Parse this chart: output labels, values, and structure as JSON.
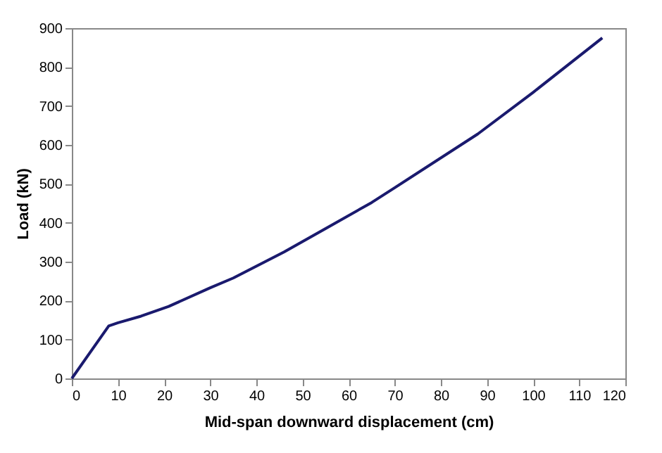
{
  "chart_data": {
    "type": "line",
    "xlabel": "Mid-span downward displacement (cm)",
    "ylabel": "Load (kN)",
    "x": [
      0,
      8,
      10,
      15,
      21,
      30,
      35,
      46,
      55,
      65,
      70,
      88,
      100,
      115
    ],
    "series": [
      {
        "color": "#1a1a6e",
        "values": [
          0,
          135,
          143,
          160,
          185,
          233,
          258,
          325,
          385,
          452,
          490,
          628,
          735,
          875
        ]
      }
    ],
    "xlim": [
      0,
      120
    ],
    "xticks": [
      0,
      10,
      20,
      30,
      40,
      50,
      60,
      70,
      80,
      90,
      100,
      110,
      120
    ],
    "ylim": [
      0,
      900
    ],
    "yticks": [
      0,
      100,
      200,
      300,
      400,
      500,
      600,
      700,
      800,
      900
    ],
    "line_style": "solid"
  }
}
